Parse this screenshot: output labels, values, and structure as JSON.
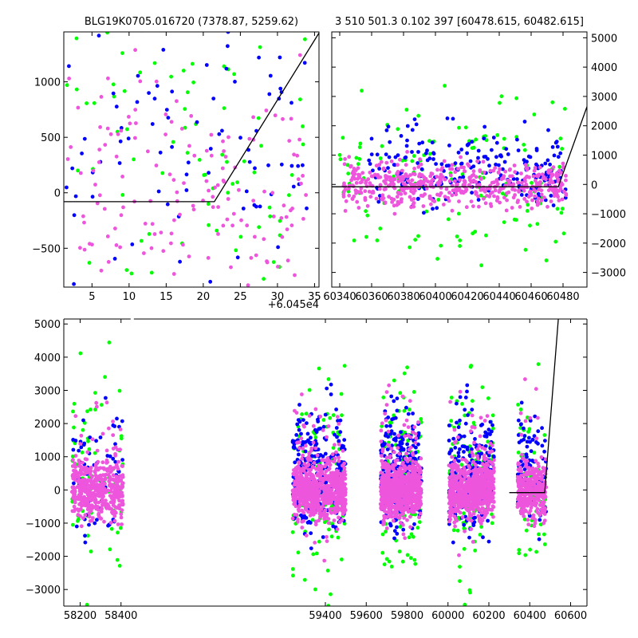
{
  "colors": {
    "green": "#00ff00",
    "blue": "#0000ff",
    "pink": "#ee55dd",
    "model": "#000000"
  },
  "chart_data": [
    {
      "type": "scatter",
      "panel": "top-left",
      "title": "BLG19K0705.016720 (7378.87, 5259.62)",
      "xlim": [
        1.2,
        35.6
      ],
      "ylim": [
        -850,
        1450
      ],
      "offset_label": "+6.045e4",
      "xticks": [
        5,
        10,
        15,
        20,
        25,
        30,
        35
      ],
      "yticks": [
        -500,
        0,
        500,
        1000
      ],
      "yaxis_side": "left",
      "model_line": {
        "x": [
          1.2,
          21.5,
          35.6
        ],
        "y": [
          -80,
          -80,
          1440
        ]
      },
      "series": [
        {
          "color": "green",
          "count": 80,
          "x_range": [
            1.5,
            34
          ],
          "center": 400,
          "spread": 700
        },
        {
          "color": "blue",
          "count": 90,
          "x_range": [
            1.5,
            34
          ],
          "center": 550,
          "spread": 650
        },
        {
          "color": "pink",
          "count": 160,
          "x_range": [
            1.5,
            34
          ],
          "center": 0,
          "spread": 600
        }
      ]
    },
    {
      "type": "scatter",
      "panel": "top-right",
      "title": "3 510 501.3 0.102 397 [60478.615, 60482.615]",
      "xlim": [
        60335,
        60495
      ],
      "ylim": [
        -3500,
        5200
      ],
      "xticks": [
        60340,
        60360,
        60380,
        60400,
        60420,
        60440,
        60460,
        60480
      ],
      "yticks": [
        -3000,
        -2000,
        -1000,
        0,
        1000,
        2000,
        3000,
        4000,
        5000
      ],
      "yaxis_side": "right",
      "model_line": {
        "x": [
          60335,
          60477,
          60495
        ],
        "y": [
          -80,
          -80,
          2650
        ]
      },
      "series": [
        {
          "color": "green",
          "count": 130,
          "x_range": [
            60340,
            60482
          ],
          "center": 250,
          "spread": 1400
        },
        {
          "color": "blue",
          "count": 220,
          "x_range": [
            60358,
            60482
          ],
          "center": 500,
          "spread": 700
        },
        {
          "color": "pink",
          "count": 520,
          "x_range": [
            60342,
            60482
          ],
          "center": 0,
          "spread": 380
        }
      ]
    },
    {
      "type": "scatter",
      "panel": "bottom",
      "title": "",
      "xlim": [
        58120,
        60680
      ],
      "ylim": [
        -3500,
        5150
      ],
      "xticks": [
        58200,
        58400,
        59400,
        59600,
        59800,
        60000,
        60200,
        60400,
        60600
      ],
      "yticks": [
        -3000,
        -2000,
        -1000,
        0,
        1000,
        2000,
        3000,
        4000,
        5000
      ],
      "yaxis_side": "left",
      "axis_break_x": 58455,
      "model_line": {
        "x": [
          60300,
          60473,
          60540
        ],
        "y": [
          -80,
          -80,
          5150
        ]
      },
      "seasons": [
        {
          "x_range": [
            58160,
            58410
          ],
          "pink": 420,
          "blue": 70,
          "green": 80
        },
        {
          "x_range": [
            59240,
            59500
          ],
          "pink": 620,
          "blue": 240,
          "green": 120
        },
        {
          "x_range": [
            59670,
            59870
          ],
          "pink": 620,
          "blue": 260,
          "green": 120
        },
        {
          "x_range": [
            60005,
            60225
          ],
          "pink": 620,
          "blue": 230,
          "green": 110
        },
        {
          "x_range": [
            60340,
            60480
          ],
          "pink": 260,
          "blue": 90,
          "green": 60
        }
      ]
    }
  ]
}
